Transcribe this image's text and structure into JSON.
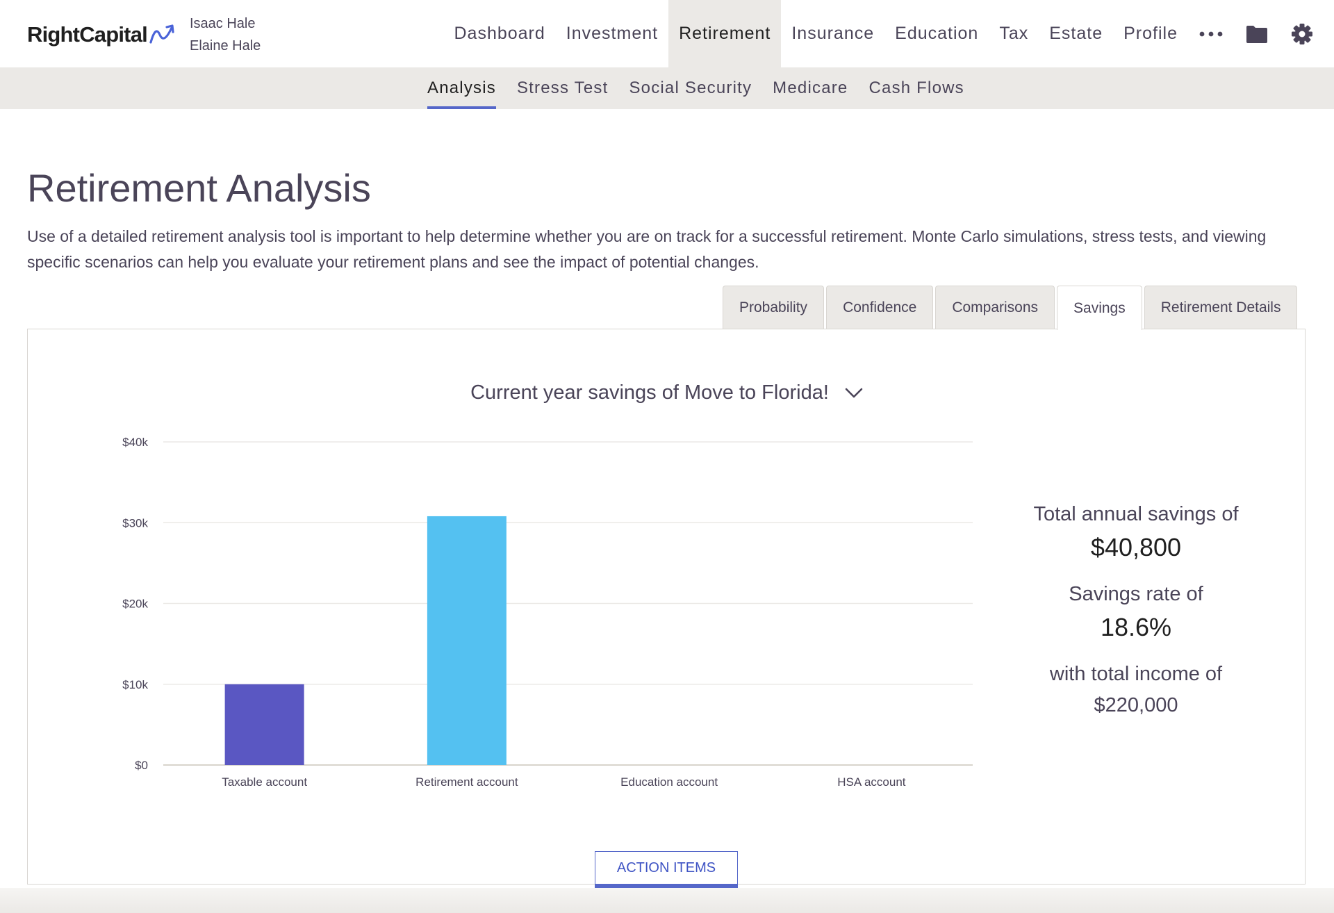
{
  "brand": {
    "name": "RightCapital"
  },
  "clients": {
    "primary": "Isaac Hale",
    "secondary": "Elaine Hale"
  },
  "main_nav": [
    {
      "label": "Dashboard",
      "active": false
    },
    {
      "label": "Investment",
      "active": false
    },
    {
      "label": "Retirement",
      "active": true
    },
    {
      "label": "Insurance",
      "active": false
    },
    {
      "label": "Education",
      "active": false
    },
    {
      "label": "Tax",
      "active": false
    },
    {
      "label": "Estate",
      "active": false
    },
    {
      "label": "Profile",
      "active": false
    }
  ],
  "header_icons": {
    "more": "more-dots-icon",
    "vault": "folder-icon",
    "settings": "gear-icon"
  },
  "sub_nav": [
    {
      "label": "Analysis",
      "active": true
    },
    {
      "label": "Stress Test",
      "active": false
    },
    {
      "label": "Social Security",
      "active": false
    },
    {
      "label": "Medicare",
      "active": false
    },
    {
      "label": "Cash Flows",
      "active": false
    }
  ],
  "page": {
    "title": "Retirement Analysis",
    "intro": "Use of a detailed retirement analysis tool is important to help determine whether you are on track for a successful retirement. Monte Carlo simulations, stress tests, and viewing specific scenarios can help you evaluate your retirement plans and see the impact of potential changes."
  },
  "tabs": [
    {
      "label": "Probability",
      "active": false
    },
    {
      "label": "Confidence",
      "active": false
    },
    {
      "label": "Comparisons",
      "active": false
    },
    {
      "label": "Savings",
      "active": true
    },
    {
      "label": "Retirement Details",
      "active": false
    }
  ],
  "scenario_selector": {
    "label": "Current year savings of Move to Florida!",
    "icon": "chevron-down-icon"
  },
  "chart_data": {
    "type": "bar",
    "title": "",
    "xlabel": "",
    "ylabel": "",
    "categories": [
      "Taxable account",
      "Retirement account",
      "Education account",
      "HSA account"
    ],
    "values": [
      10000,
      30800,
      0,
      0
    ],
    "colors": [
      "#5a57c2",
      "#54c1f1",
      "#54c1f1",
      "#54c1f1"
    ],
    "ylim": [
      0,
      40000
    ],
    "yticks": [
      0,
      10000,
      20000,
      30000,
      40000
    ],
    "ytick_labels": [
      "$0",
      "$10k",
      "$20k",
      "$30k",
      "$40k"
    ],
    "grid": true,
    "legend": "none"
  },
  "summary": {
    "total_label": "Total annual savings of",
    "total_value": "$40,800",
    "rate_label": "Savings rate of",
    "rate_value": "18.6%",
    "income_label": "with total income of",
    "income_value": "$220,000"
  },
  "action_button": {
    "label": "ACTION ITEMS"
  }
}
